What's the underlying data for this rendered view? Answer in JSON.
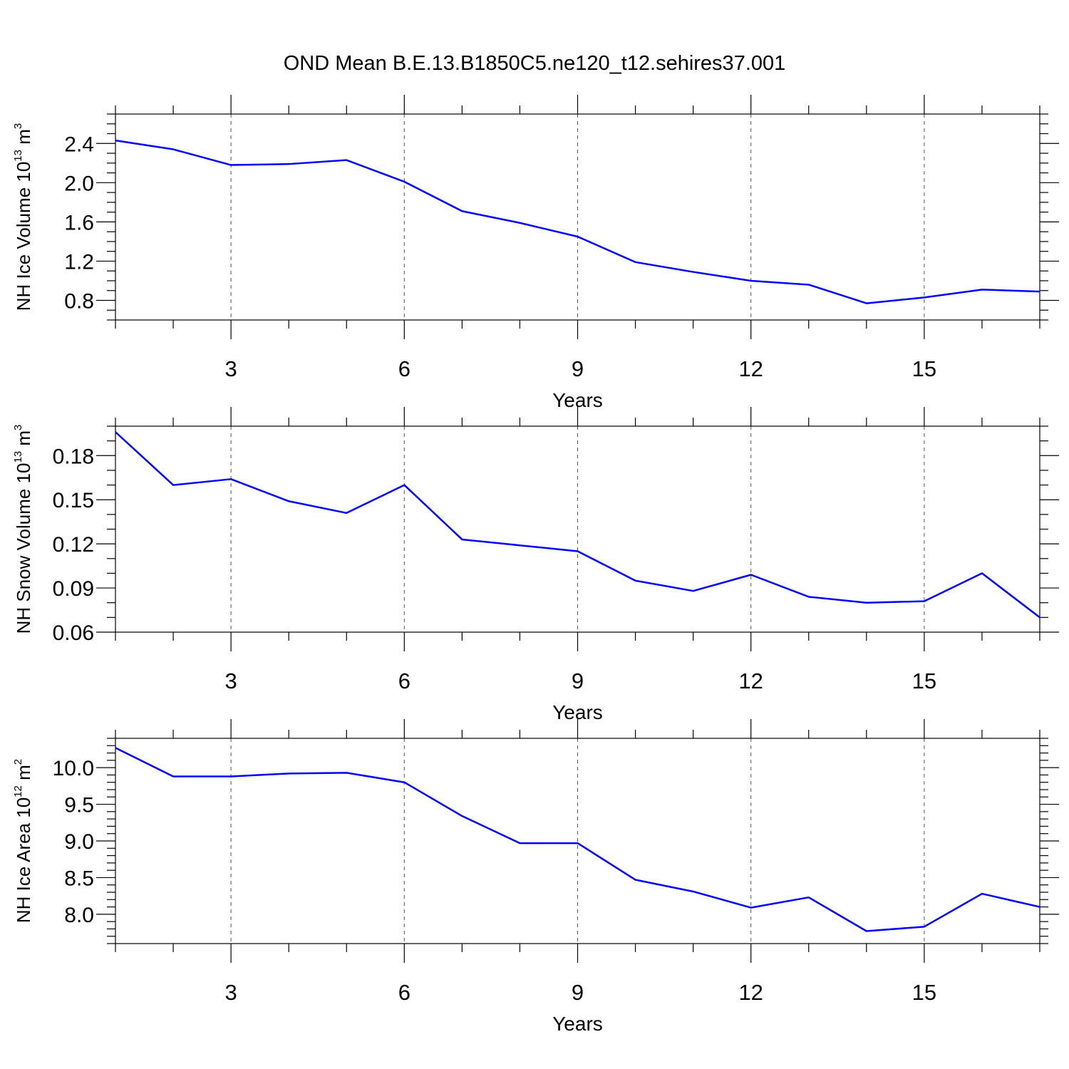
{
  "figure": {
    "title": "OND Mean B.E.13.B1850C5.ne120_t12.sehires37.001",
    "line_color": "#0000ff"
  },
  "chart_data": [
    {
      "type": "line",
      "xlabel": "Years",
      "ylabel": {
        "text": "NH Ice Volume 10",
        "exponent": "13",
        "unit": " m",
        "unit_exponent": "3"
      },
      "xlim": [
        1,
        17
      ],
      "ylim": [
        0.6,
        2.7
      ],
      "x_ticks": [
        3,
        6,
        9,
        12,
        15
      ],
      "x_tick_labels": [
        "3",
        "6",
        "9",
        "12",
        "15"
      ],
      "y_ticks": [
        0.8,
        1.2,
        1.6,
        2.0,
        2.4
      ],
      "y_tick_labels": [
        "0.8",
        "1.2",
        "1.6",
        "2.0",
        "2.4"
      ],
      "y_minor_step": 0.1,
      "x": [
        1,
        2,
        3,
        4,
        5,
        6,
        7,
        8,
        9,
        10,
        11,
        12,
        13,
        14,
        15,
        16,
        17
      ],
      "series": [
        {
          "name": "NH Ice Volume",
          "values": [
            2.43,
            2.34,
            2.18,
            2.19,
            2.23,
            2.01,
            1.71,
            1.59,
            1.45,
            1.19,
            1.09,
            1.0,
            0.96,
            0.77,
            0.83,
            0.91,
            0.89
          ]
        }
      ]
    },
    {
      "type": "line",
      "xlabel": "Years",
      "ylabel": {
        "text": "NH Snow Volume 10",
        "exponent": "13",
        "unit": " m",
        "unit_exponent": "3"
      },
      "xlim": [
        1,
        17
      ],
      "ylim": [
        0.06,
        0.2
      ],
      "x_ticks": [
        3,
        6,
        9,
        12,
        15
      ],
      "x_tick_labels": [
        "3",
        "6",
        "9",
        "12",
        "15"
      ],
      "y_ticks": [
        0.06,
        0.09,
        0.12,
        0.15,
        0.18
      ],
      "y_tick_labels": [
        "0.06",
        "0.09",
        "0.12",
        "0.15",
        "0.18"
      ],
      "y_minor_step": 0.01,
      "x": [
        1,
        2,
        3,
        4,
        5,
        6,
        7,
        8,
        9,
        10,
        11,
        12,
        13,
        14,
        15,
        16,
        17
      ],
      "series": [
        {
          "name": "NH Snow Volume",
          "values": [
            0.196,
            0.16,
            0.164,
            0.149,
            0.141,
            0.16,
            0.123,
            0.119,
            0.115,
            0.095,
            0.088,
            0.099,
            0.084,
            0.08,
            0.081,
            0.1,
            0.07
          ]
        }
      ]
    },
    {
      "type": "line",
      "xlabel": "Years",
      "ylabel": {
        "text": "NH Ice Area 10",
        "exponent": "12",
        "unit": " m",
        "unit_exponent": "2"
      },
      "xlim": [
        1,
        17
      ],
      "ylim": [
        7.6,
        10.4
      ],
      "x_ticks": [
        3,
        6,
        9,
        12,
        15
      ],
      "x_tick_labels": [
        "3",
        "6",
        "9",
        "12",
        "15"
      ],
      "y_ticks": [
        8.0,
        8.5,
        9.0,
        9.5,
        10.0
      ],
      "y_tick_labels": [
        "8.0",
        "8.5",
        "9.0",
        "9.5",
        "10.0"
      ],
      "y_minor_step": 0.1,
      "x": [
        1,
        2,
        3,
        4,
        5,
        6,
        7,
        8,
        9,
        10,
        11,
        12,
        13,
        14,
        15,
        16,
        17
      ],
      "series": [
        {
          "name": "NH Ice Area",
          "values": [
            10.27,
            9.88,
            9.88,
            9.92,
            9.93,
            9.8,
            9.34,
            8.97,
            8.97,
            8.47,
            8.31,
            8.09,
            8.23,
            7.77,
            7.83,
            8.28,
            8.1
          ]
        }
      ]
    }
  ]
}
